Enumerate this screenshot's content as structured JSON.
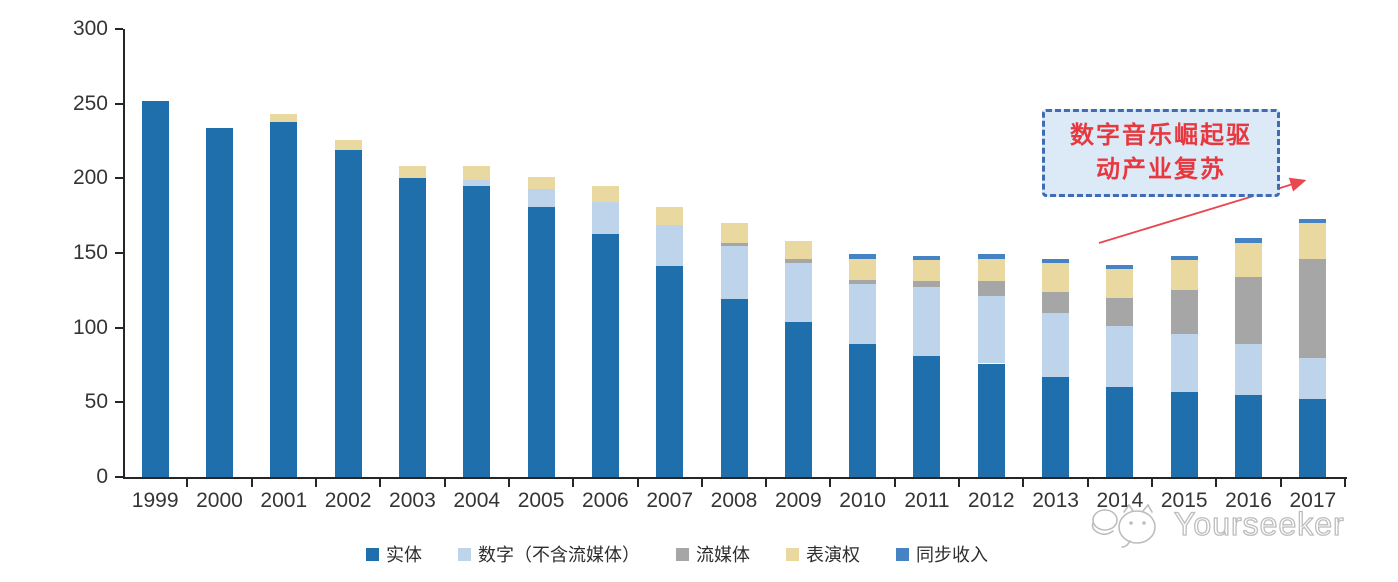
{
  "chart_data": {
    "type": "bar",
    "stacked": true,
    "categories": [
      "1999",
      "2000",
      "2001",
      "2002",
      "2003",
      "2004",
      "2005",
      "2006",
      "2007",
      "2008",
      "2009",
      "2010",
      "2011",
      "2012",
      "2013",
      "2014",
      "2015",
      "2016",
      "2017"
    ],
    "series": [
      {
        "name": "实体",
        "color": "#1F6FAD",
        "values": [
          252,
          234,
          238,
          219,
          200,
          195,
          181,
          163,
          141,
          119,
          104,
          89,
          81,
          76,
          67,
          60,
          57,
          55,
          52
        ]
      },
      {
        "name": "数字（不含流媒体）",
        "color": "#BDD4EA",
        "values": [
          0,
          0,
          0,
          0,
          0,
          4,
          12,
          21,
          28,
          36,
          39,
          40,
          46,
          45,
          43,
          41,
          39,
          34,
          28
        ]
      },
      {
        "name": "流媒体",
        "color": "#A6A6A6",
        "values": [
          0,
          0,
          0,
          0,
          0,
          0,
          0,
          0,
          0,
          2,
          3,
          3,
          4,
          10,
          14,
          19,
          29,
          45,
          66
        ]
      },
      {
        "name": "表演权",
        "color": "#E9D9A1",
        "values": [
          0,
          0,
          5,
          7,
          8,
          9,
          8,
          11,
          12,
          13,
          12,
          14,
          14,
          15,
          19,
          19,
          20,
          23,
          24
        ]
      },
      {
        "name": "同步收入",
        "color": "#4583C4",
        "values": [
          0,
          0,
          0,
          0,
          0,
          0,
          0,
          0,
          0,
          0,
          0,
          3,
          3,
          3,
          3,
          3,
          3,
          3,
          3
        ]
      }
    ],
    "title": "",
    "xlabel": "",
    "ylabel": "",
    "ylim": [
      0,
      300
    ],
    "y_ticks": [
      0,
      50,
      100,
      150,
      200,
      250,
      300
    ],
    "grid": false,
    "legend_position": "bottom"
  },
  "annotation": {
    "line1": "数字音乐崛起驱",
    "line2": "动产业复苏",
    "text_color": "#E8383F",
    "border_color": "#3F6CB5",
    "fill_color": "#DCE9F7",
    "arrow_color": "#E8474F"
  },
  "watermark": {
    "text": "Yourseeker"
  }
}
